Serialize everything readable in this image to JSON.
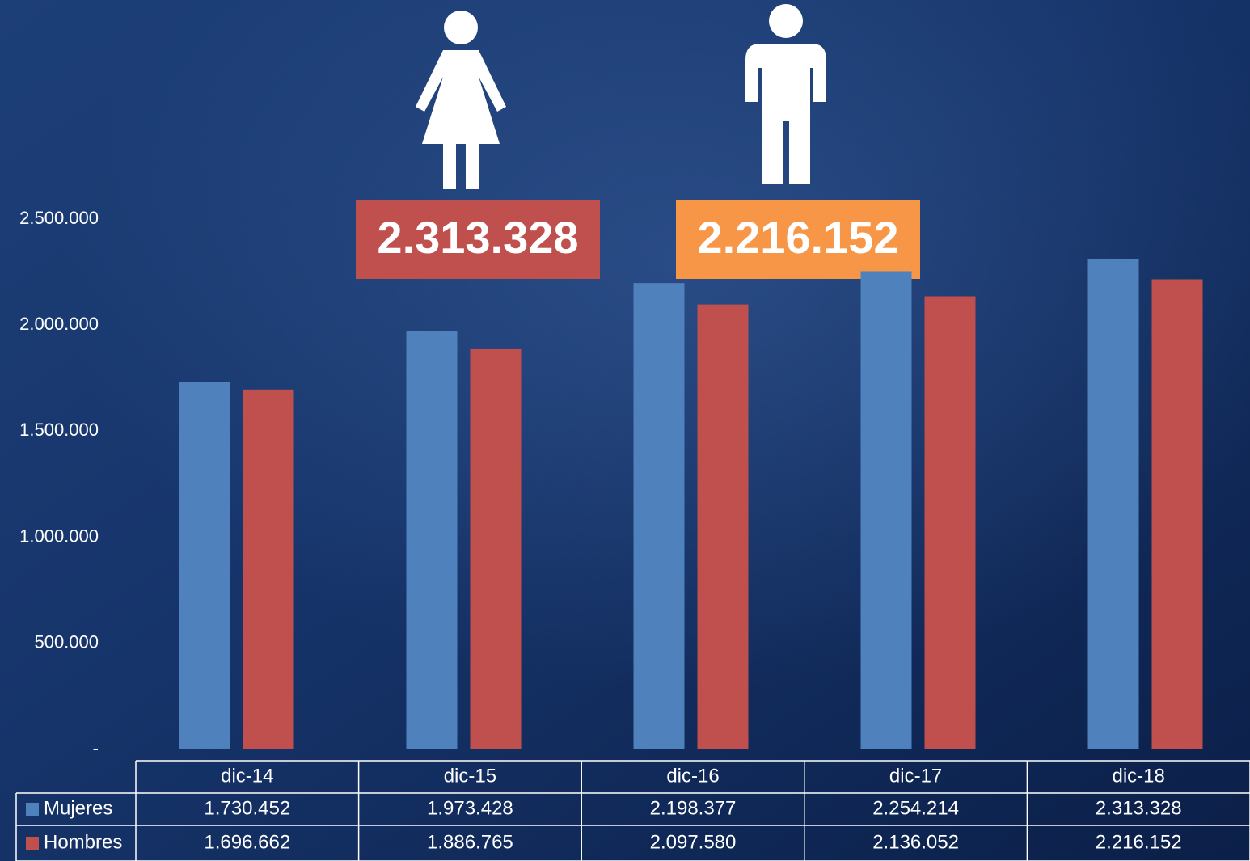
{
  "chart_data": {
    "type": "bar",
    "categories": [
      "dic-14",
      "dic-15",
      "dic-16",
      "dic-17",
      "dic-18"
    ],
    "series": [
      {
        "name": "Mujeres",
        "color": "#4f81bd",
        "values": [
          1730452,
          1973428,
          2198377,
          2254214,
          2313328
        ],
        "value_labels": [
          "1.730.452",
          "1.973.428",
          "2.198.377",
          "2.254.214",
          "2.313.328"
        ]
      },
      {
        "name": "Hombres",
        "color": "#c0504d",
        "values": [
          1696662,
          1886765,
          2097580,
          2136052,
          2216152
        ],
        "value_labels": [
          "1.696.662",
          "1.886.765",
          "2.097.580",
          "2.136.052",
          "2.216.152"
        ]
      }
    ],
    "ylim": [
      0,
      2500000
    ],
    "yticks": [
      {
        "value": 0,
        "label": "-"
      },
      {
        "value": 500000,
        "label": "500.000"
      },
      {
        "value": 1000000,
        "label": "1.000.000"
      },
      {
        "value": 1500000,
        "label": "1.500.000"
      },
      {
        "value": 2000000,
        "label": "2.000.000"
      },
      {
        "value": 2500000,
        "label": "2.500.000"
      }
    ],
    "grid": false,
    "annotations": [
      {
        "text": "2.313.328",
        "color": "#c0504d"
      },
      {
        "text": "2.216.152",
        "color": "#f79646"
      }
    ]
  }
}
